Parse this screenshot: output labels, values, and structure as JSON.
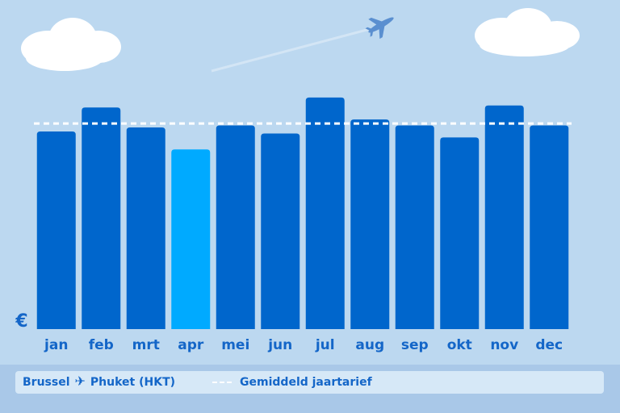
{
  "legend": {
    "origin": "Brussel",
    "destination": "Phuket (HKT)",
    "route_icon": "airplane-icon",
    "average_label": "Gemiddeld jaartarief"
  },
  "colors": {
    "background": "#bcd8f0",
    "bar": "#0066cc",
    "bar_highlight": "#00aaff",
    "label": "#1466c8",
    "average_line": "#ffffff"
  },
  "chart_data": {
    "type": "bar",
    "categories": [
      "jan",
      "feb",
      "mrt",
      "apr",
      "mei",
      "jun",
      "jul",
      "aug",
      "sep",
      "okt",
      "nov",
      "dec"
    ],
    "values": [
      99,
      111,
      101,
      90,
      102,
      98,
      116,
      105,
      102,
      96,
      112,
      102
    ],
    "highlight_index": 3,
    "average": 103,
    "ylabel": "€",
    "ylim": [
      0,
      120
    ],
    "yticks_shown": false,
    "grid": false,
    "legend_placement": "bottom"
  }
}
